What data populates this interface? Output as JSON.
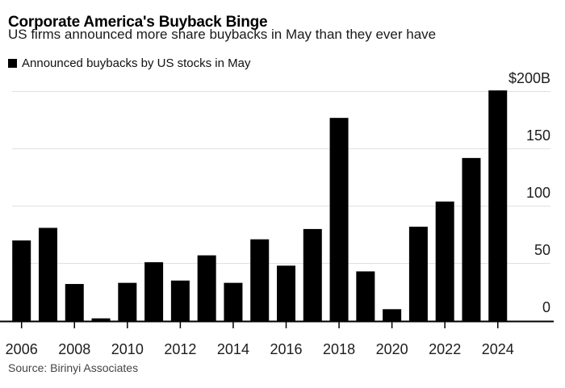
{
  "header": {
    "title": "Corporate America's Buyback Binge",
    "subtitle": "US firms announced more share buybacks in May than they ever have"
  },
  "legend": {
    "label": "Announced buybacks by US stocks in May",
    "marker_color": "#000000"
  },
  "source": "Source: Birinyi Associates",
  "chart_data": {
    "type": "bar",
    "title": "Corporate America's Buyback Binge",
    "subtitle": "US firms announced more share buybacks in May than they ever have",
    "series_label": "Announced buybacks by US stocks in May",
    "unit": "billions of US dollars",
    "categories": [
      2006,
      2007,
      2008,
      2009,
      2010,
      2011,
      2012,
      2013,
      2014,
      2015,
      2016,
      2017,
      2018,
      2019,
      2020,
      2021,
      2022,
      2023,
      2024
    ],
    "values": [
      70,
      81,
      32,
      2,
      33,
      51,
      35,
      57,
      33,
      71,
      48,
      80,
      177,
      43,
      10,
      82,
      104,
      142,
      201
    ],
    "x_tick_labels": [
      "2006",
      "2008",
      "2010",
      "2012",
      "2014",
      "2016",
      "2018",
      "2020",
      "2022",
      "2024"
    ],
    "y_ticks": [
      {
        "value": 200,
        "label": "$200B"
      },
      {
        "value": 150,
        "label": "150"
      },
      {
        "value": 100,
        "label": "100"
      },
      {
        "value": 50,
        "label": "50"
      },
      {
        "value": 0,
        "label": "0"
      }
    ],
    "ylim": [
      0,
      200
    ],
    "y_axis_side": "right",
    "grid": true,
    "legend_position": "top-left",
    "bar_color": "#000000",
    "gridline_color": "#e0e0e0",
    "axis_color": "#000000",
    "tick_label_color": "#1d1d1d",
    "source": "Source: Birinyi Associates"
  }
}
